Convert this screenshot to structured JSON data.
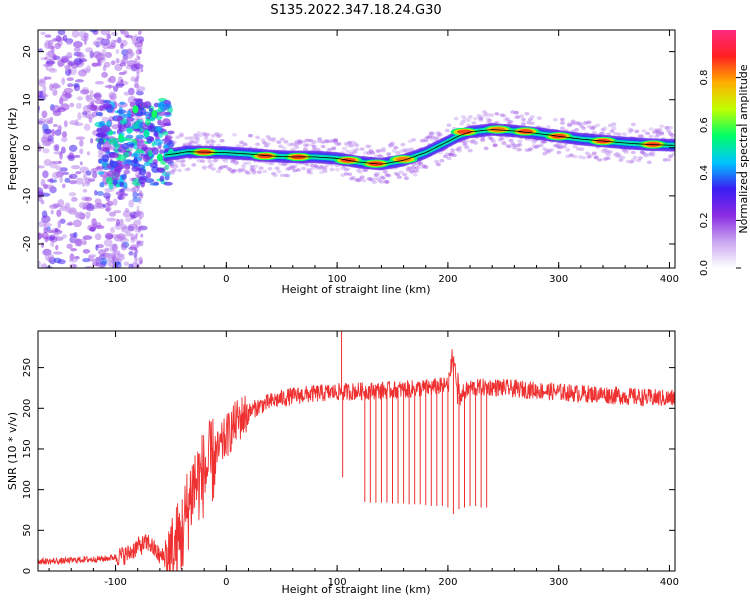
{
  "title": "S135.2022.347.18.24.G30",
  "colors": {
    "snr_line": "#ef3030",
    "ridge_line": "#000000",
    "axis": "#000000",
    "colormap": [
      "#ffffff",
      "#c9a6f0",
      "#8a2be2",
      "#3a1ef5",
      "#00c6ff",
      "#00ff66",
      "#c0ff00",
      "#ffb000",
      "#ff2020",
      "#ff2a80"
    ]
  },
  "chart_data": [
    {
      "type": "heatmap",
      "xlabel": "Height of straight line (km)",
      "ylabel": "Frequency (Hz)",
      "xlim": [
        -170,
        405
      ],
      "ylim": [
        -25,
        24.5
      ],
      "x_ticks": [
        -100,
        0,
        100,
        200,
        300,
        400
      ],
      "x_tick_labels": [
        "-100",
        "0",
        "100",
        "200",
        "300",
        "400"
      ],
      "y_ticks": [
        -20,
        -10,
        0,
        10,
        20
      ],
      "y_tick_labels": [
        "-20",
        "-10",
        "0",
        "10",
        "20"
      ],
      "colorbar": {
        "label": "Normalized spectral amplitude",
        "range": [
          0,
          1
        ],
        "ticks": [
          0.0,
          0.2,
          0.4,
          0.6,
          0.8
        ],
        "tick_labels": [
          "0.0",
          "0.2",
          "0.4",
          "0.6",
          "0.8"
        ]
      },
      "ridge": {
        "x": [
          -55,
          -45,
          -35,
          -20,
          0,
          20,
          40,
          60,
          80,
          100,
          120,
          140,
          160,
          180,
          200,
          210,
          220,
          240,
          260,
          280,
          300,
          320,
          340,
          360,
          380,
          405
        ],
        "y": [
          -1.5,
          -1.2,
          -0.8,
          -0.9,
          -1.0,
          -1.3,
          -1.7,
          -1.9,
          -1.9,
          -2.2,
          -3.0,
          -3.4,
          -2.6,
          -1.0,
          1.3,
          2.5,
          3.3,
          3.8,
          3.5,
          3.0,
          2.4,
          1.8,
          1.4,
          1.0,
          0.7,
          0.5
        ]
      },
      "peaks": [
        {
          "x": -20,
          "y": -0.9,
          "amp": 1.0
        },
        {
          "x": 35,
          "y": -1.7,
          "amp": 1.0
        },
        {
          "x": 65,
          "y": -1.9,
          "amp": 1.0
        },
        {
          "x": 110,
          "y": -2.6,
          "amp": 1.0
        },
        {
          "x": 135,
          "y": -3.3,
          "amp": 1.0
        },
        {
          "x": 160,
          "y": -2.4,
          "amp": 0.95
        },
        {
          "x": 215,
          "y": 3.3,
          "amp": 1.0
        },
        {
          "x": 245,
          "y": 3.8,
          "amp": 0.95
        },
        {
          "x": 270,
          "y": 3.4,
          "amp": 1.0
        },
        {
          "x": 300,
          "y": 2.4,
          "amp": 1.0
        },
        {
          "x": 340,
          "y": 1.4,
          "amp": 1.0
        },
        {
          "x": 385,
          "y": 0.7,
          "amp": 1.0
        }
      ]
    },
    {
      "type": "line",
      "xlabel": "Height of straight line (km)",
      "ylabel": "SNR (10 * v/v)",
      "xlim": [
        -170,
        405
      ],
      "ylim": [
        0,
        295
      ],
      "x_ticks": [
        -100,
        0,
        100,
        200,
        300,
        400
      ],
      "x_tick_labels": [
        "-100",
        "0",
        "100",
        "200",
        "300",
        "400"
      ],
      "y_ticks": [
        0,
        50,
        100,
        150,
        200,
        250
      ],
      "y_tick_labels": [
        "0",
        "50",
        "100",
        "150",
        "200",
        "250"
      ],
      "series": [
        {
          "x": [
            -170,
            -150,
            -130,
            -110,
            -90,
            -80,
            -70,
            -60,
            -50,
            -40,
            -30,
            -20,
            -10,
            0,
            10,
            20,
            30,
            40,
            50,
            60,
            80,
            100,
            120,
            140,
            160,
            180,
            200,
            205,
            210,
            220,
            240,
            260,
            280,
            300,
            320,
            340,
            360,
            380,
            405
          ],
          "y": [
            12,
            12,
            14,
            15,
            20,
            30,
            35,
            18,
            15,
            45,
            105,
            120,
            140,
            165,
            185,
            195,
            203,
            208,
            212,
            215,
            218,
            220,
            221,
            222,
            223,
            225,
            228,
            262,
            215,
            225,
            226,
            224,
            222,
            220,
            218,
            217,
            215,
            213,
            212
          ],
          "dropouts_x": [
            105,
            125,
            130,
            135,
            140,
            145,
            150,
            155,
            160,
            165,
            170,
            175,
            180,
            185,
            190,
            195,
            200,
            205,
            210,
            215,
            220,
            225,
            230,
            235
          ],
          "dropouts_y": [
            115,
            85,
            84,
            84,
            84,
            84,
            83,
            83,
            83,
            82,
            82,
            82,
            81,
            80,
            80,
            80,
            78,
            70,
            76,
            78,
            80,
            80,
            78,
            78
          ]
        }
      ]
    }
  ]
}
